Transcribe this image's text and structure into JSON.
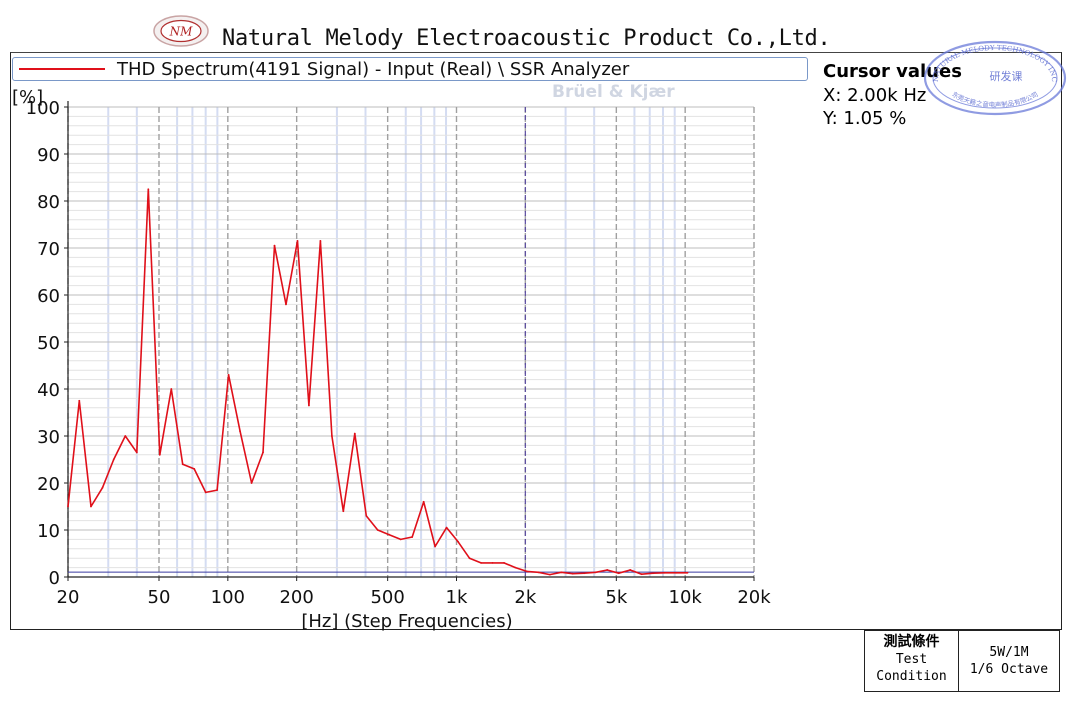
{
  "header": {
    "logo_text": "NM",
    "company": "Natural Melody Electroacoustic Product Co.,Ltd."
  },
  "legend": {
    "label": "THD Spectrum(4191 Signal) - Input (Real) \\ SSR Analyzer",
    "color": "#e0101a"
  },
  "brand_watermark": "Brüel & Kjær",
  "cursor": {
    "title": "Cursor values",
    "x": "X: 2.00k Hz",
    "y": "Y: 1.05 %"
  },
  "stamp": {
    "outer_text": "NATURAL MELODY TECHNOLOGY INC",
    "inner_text": "研发课",
    "bottom_text": "东莞天籁之音电声制品有限公司"
  },
  "test_condition": {
    "label_cn": "測試條件",
    "label_en_1": "Test",
    "label_en_2": "Condition",
    "value_1": "5W/1M",
    "value_2": "1/6 Octave"
  },
  "chart_data": {
    "type": "line",
    "title": "",
    "xlabel": "[Hz] (Step Frequencies)",
    "ylabel": "[%]",
    "x_scale": "log",
    "xlim": [
      20,
      20000
    ],
    "ylim": [
      0,
      100
    ],
    "y_ticks": [
      0,
      10,
      20,
      30,
      40,
      50,
      60,
      70,
      80,
      90,
      100
    ],
    "x_ticks": [
      {
        "value": 20,
        "label": "20"
      },
      {
        "value": 50,
        "label": "50"
      },
      {
        "value": 100,
        "label": "100"
      },
      {
        "value": 200,
        "label": "200"
      },
      {
        "value": 500,
        "label": "500"
      },
      {
        "value": 1000,
        "label": "1k"
      },
      {
        "value": 2000,
        "label": "2k"
      },
      {
        "value": 5000,
        "label": "5k"
      },
      {
        "value": 10000,
        "label": "10k"
      },
      {
        "value": 20000,
        "label": "20k"
      }
    ],
    "grid": true,
    "cursor_x": 2000,
    "cursor_y": 1.05,
    "series": [
      {
        "color": "#e0101a",
        "x": [
          20,
          22.4,
          25.2,
          28.3,
          31.7,
          35.6,
          40,
          44.9,
          50.4,
          56.6,
          63.5,
          71.3,
          80,
          89.8,
          100.8,
          113.1,
          127,
          142.5,
          160,
          179.6,
          201.6,
          226.3,
          254,
          285.1,
          320,
          359.2,
          403.2,
          452.5,
          508,
          570.2,
          640,
          718.4,
          806.3,
          905.1,
          1016,
          1140,
          1280,
          1437,
          1613,
          1810,
          2032,
          2281,
          2560,
          2874,
          3225,
          3620,
          4064,
          4561,
          5120,
          5747,
          6451,
          7241,
          8127,
          9123,
          10240
        ],
        "y": [
          15,
          37.5,
          15,
          19,
          25,
          30,
          26.5,
          82.5,
          26,
          40,
          24,
          23,
          18,
          18.5,
          43,
          31,
          20,
          26.5,
          70.5,
          58,
          71.5,
          36.5,
          71.5,
          30,
          14,
          30.5,
          13,
          10,
          9,
          8,
          8.5,
          16,
          6.5,
          10.5,
          7.5,
          4,
          3,
          3,
          3,
          2,
          1.2,
          1,
          0.5,
          1,
          0.7,
          0.8,
          1,
          1.5,
          0.8,
          1.5,
          0.6,
          0.8,
          0.9,
          0.9,
          0.9
        ]
      }
    ]
  }
}
